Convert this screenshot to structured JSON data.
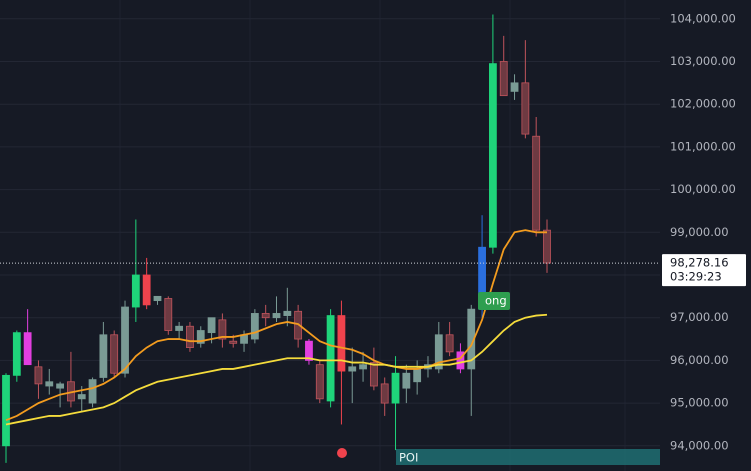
{
  "chart_data": {
    "type": "candlestick",
    "ylim": [
      93410,
      104440
    ],
    "yticks": [
      {
        "value": 94000,
        "label": "94,000.00"
      },
      {
        "value": 95000,
        "label": "95,000.00"
      },
      {
        "value": 96000,
        "label": "96,000.00"
      },
      {
        "value": 97000,
        "label": "97,000.00"
      },
      {
        "value": 98000,
        "label": "98,000.00"
      },
      {
        "value": 99000,
        "label": "99,000.00"
      },
      {
        "value": 100000,
        "label": "100,000.00"
      },
      {
        "value": 101000,
        "label": "101,000.00"
      },
      {
        "value": 102000,
        "label": "102,000.00"
      },
      {
        "value": 103000,
        "label": "103,000.00"
      },
      {
        "value": 104000,
        "label": "104,000.00"
      }
    ],
    "grid": true,
    "candles": {
      "open": [
        94000,
        95650,
        96650,
        95850,
        95400,
        95350,
        95500,
        95100,
        95000,
        95600,
        96600,
        95700,
        97250,
        98000,
        97400,
        97450,
        96700,
        96800,
        96400,
        96650,
        96950,
        96450,
        96400,
        96500,
        97100,
        97000,
        97050,
        97150,
        96450,
        95900,
        95050,
        97050,
        95750,
        95800,
        95950,
        95450,
        95000,
        95350,
        95500,
        95800,
        95800,
        96600,
        96200,
        95800,
        97200,
        98650,
        103000,
        102300,
        102500,
        101250,
        99050
      ],
      "high": [
        95700,
        96700,
        97200,
        96000,
        95800,
        95500,
        96200,
        95400,
        95600,
        96900,
        96700,
        97400,
        99300,
        98400,
        97500,
        97500,
        96900,
        96900,
        96800,
        97000,
        97100,
        96600,
        96700,
        97200,
        97300,
        97500,
        97700,
        97300,
        96500,
        96000,
        97200,
        97400,
        96300,
        96200,
        96300,
        95600,
        96100,
        95900,
        96000,
        96100,
        96900,
        96900,
        96400,
        97300,
        99400,
        104100,
        103600,
        102700,
        103500,
        101700,
        99300
      ],
      "low": [
        93600,
        95500,
        95900,
        95100,
        95200,
        94900,
        94900,
        94800,
        94900,
        95500,
        95600,
        95600,
        96900,
        97200,
        97300,
        96600,
        96500,
        96200,
        96300,
        96400,
        96300,
        96300,
        96200,
        96400,
        96800,
        96900,
        96800,
        96300,
        95900,
        95000,
        94900,
        94500,
        95000,
        95500,
        95300,
        94700,
        93900,
        95000,
        95200,
        95600,
        95700,
        96100,
        95700,
        94700,
        97000,
        98500,
        102200,
        102100,
        101200,
        98900,
        98050
      ],
      "close": [
        95650,
        96650,
        95900,
        95450,
        95500,
        95450,
        95050,
        95200,
        95550,
        96600,
        95700,
        97250,
        98000,
        97300,
        97500,
        96700,
        96800,
        96300,
        96700,
        97000,
        96500,
        96400,
        96600,
        97100,
        97000,
        97100,
        97150,
        96500,
        96000,
        95100,
        97050,
        95750,
        95850,
        95900,
        95400,
        95000,
        95700,
        95700,
        95800,
        95900,
        96600,
        96200,
        95800,
        97200,
        98650,
        102950,
        102200,
        102500,
        101300,
        99050,
        98280
      ],
      "colors": [
        "#1fd47a",
        "#1fd47a",
        "#e23fe0",
        "#6e3a42",
        "#7a9b95",
        "#7a9b95",
        "#6e3a42",
        "#7a9b95",
        "#7a9b95",
        "#7a9b95",
        "#6e3a42",
        "#7a9b95",
        "#1fd47a",
        "#f0434d",
        "#7a9b95",
        "#6e3a42",
        "#7a9b95",
        "#6e3a42",
        "#7a9b95",
        "#7a9b95",
        "#6e3a42",
        "#6e3a42",
        "#7a9b95",
        "#7a9b95",
        "#6e3a42",
        "#7a9b95",
        "#7a9b95",
        "#6e3a42",
        "#e23fe0",
        "#6e3a42",
        "#1fd47a",
        "#f0434d",
        "#7a9b95",
        "#7a9b95",
        "#6e3a42",
        "#6e3a42",
        "#1fd47a",
        "#7a9b95",
        "#7a9b95",
        "#7a9b95",
        "#7a9b95",
        "#6e3a42",
        "#e23fe0",
        "#7a9b95",
        "#2b6fde",
        "#1fd47a",
        "#6e3a42",
        "#7a9b95",
        "#6e3a42",
        "#6e3a42",
        "#6e3a42"
      ]
    },
    "lines": [
      {
        "color": "#f39c1f",
        "values": [
          94600,
          94700,
          94850,
          95000,
          95100,
          95200,
          95250,
          95300,
          95350,
          95450,
          95600,
          95800,
          96100,
          96300,
          96450,
          96500,
          96500,
          96450,
          96450,
          96500,
          96550,
          96550,
          96600,
          96650,
          96750,
          96850,
          96900,
          96850,
          96650,
          96450,
          96350,
          96300,
          96250,
          96150,
          96000,
          95900,
          95850,
          95800,
          95800,
          95850,
          95950,
          96000,
          96050,
          96350,
          96950,
          97800,
          98600,
          99000,
          99050,
          99000,
          99000
        ]
      },
      {
        "color": "#f5dc3c",
        "values": [
          94500,
          94550,
          94600,
          94650,
          94700,
          94700,
          94750,
          94800,
          94850,
          94900,
          95000,
          95150,
          95300,
          95400,
          95500,
          95550,
          95600,
          95650,
          95700,
          95750,
          95800,
          95800,
          95850,
          95900,
          95950,
          96000,
          96050,
          96050,
          96050,
          96000,
          96000,
          96000,
          95950,
          95950,
          95900,
          95900,
          95850,
          95850,
          95850,
          95850,
          95900,
          95900,
          95950,
          96000,
          96200,
          96450,
          96700,
          96900,
          97000,
          97050,
          97070
        ]
      }
    ],
    "last_price": {
      "value": 98278.16,
      "label": "98,278.16"
    },
    "countdown": "03:29:23",
    "annotations": {
      "signal": "ong",
      "zone": "POI"
    }
  }
}
